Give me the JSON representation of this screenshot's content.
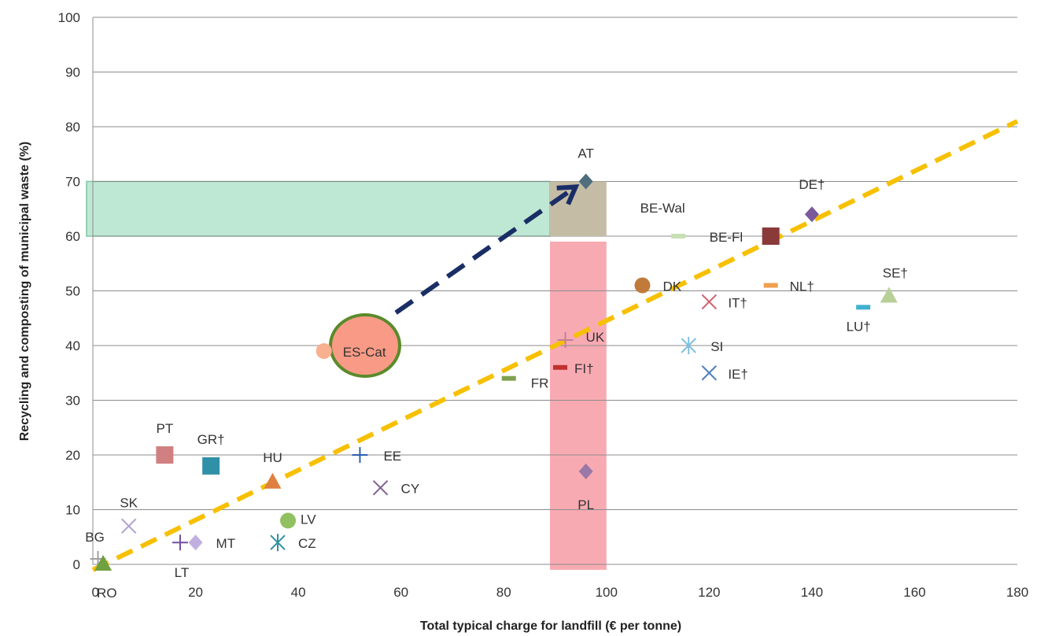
{
  "chart_data": {
    "type": "scatter",
    "xlabel": "Total typical charge for landfill (€ per tonne)",
    "ylabel": "Recycling and composting of municipal waste (%)",
    "xlim": [
      0,
      180
    ],
    "ylim": [
      0,
      100
    ],
    "xticks": [
      0,
      20,
      40,
      60,
      80,
      100,
      120,
      140,
      160,
      180
    ],
    "yticks": [
      0,
      10,
      20,
      30,
      40,
      50,
      60,
      70,
      80,
      90,
      100
    ],
    "grid": "horizontal",
    "points": [
      {
        "label": "AT",
        "x": 96,
        "y": 70,
        "marker": "diamond",
        "color": "#4e6e7e"
      },
      {
        "label": "DE†",
        "x": 140,
        "y": 64,
        "marker": "diamond",
        "color": "#7a5a9a"
      },
      {
        "label": "BE-Wal",
        "x": 114,
        "y": 60,
        "marker": "dash",
        "color": "#c9e0b2"
      },
      {
        "label": "BE-Fl",
        "x": 132,
        "y": 60,
        "marker": "square",
        "color": "#8b3a3a"
      },
      {
        "label": "SE†",
        "x": 155,
        "y": 49,
        "marker": "triangle",
        "color": "#b7d098"
      },
      {
        "label": "DK",
        "x": 107,
        "y": 51,
        "marker": "circle",
        "color": "#c07a3a"
      },
      {
        "label": "NL†",
        "x": 132,
        "y": 51,
        "marker": "dash",
        "color": "#f0a050"
      },
      {
        "label": "IT†",
        "x": 120,
        "y": 48,
        "marker": "x",
        "color": "#d06070"
      },
      {
        "label": "LU†",
        "x": 150,
        "y": 47,
        "marker": "dash",
        "color": "#40b0d0"
      },
      {
        "label": "SI",
        "x": 116,
        "y": 40,
        "marker": "asterisk",
        "color": "#80c0e0"
      },
      {
        "label": "IE†",
        "x": 120,
        "y": 35,
        "marker": "x",
        "color": "#5080c0"
      },
      {
        "label": "UK",
        "x": 92,
        "y": 41,
        "marker": "plus",
        "color": "#c080a0"
      },
      {
        "label": "FI†",
        "x": 91,
        "y": 36,
        "marker": "dash",
        "color": "#c03030"
      },
      {
        "label": "FR",
        "x": 81,
        "y": 34,
        "marker": "dash",
        "color": "#80a050"
      },
      {
        "label": "ES-Cat",
        "x": 45,
        "y": 39,
        "marker": "circle",
        "color": "#f8b090"
      },
      {
        "label": "PT",
        "x": 14,
        "y": 20,
        "marker": "square",
        "color": "#d08080"
      },
      {
        "label": "GR†",
        "x": 23,
        "y": 18,
        "marker": "square",
        "color": "#3090a8"
      },
      {
        "label": "HU",
        "x": 35,
        "y": 15,
        "marker": "triangle",
        "color": "#e08040"
      },
      {
        "label": "EE",
        "x": 52,
        "y": 20,
        "marker": "plus",
        "color": "#3060b0"
      },
      {
        "label": "CY",
        "x": 56,
        "y": 14,
        "marker": "x",
        "color": "#806090"
      },
      {
        "label": "PL",
        "x": 96,
        "y": 17,
        "marker": "diamond",
        "color": "#9a78a8"
      },
      {
        "label": "SK",
        "x": 7,
        "y": 7,
        "marker": "x",
        "color": "#b0a0d0"
      },
      {
        "label": "LV",
        "x": 38,
        "y": 8,
        "marker": "circle",
        "color": "#90c060"
      },
      {
        "label": "LT",
        "x": 17,
        "y": 4,
        "marker": "plus",
        "color": "#7050a0"
      },
      {
        "label": "MT",
        "x": 20,
        "y": 4,
        "marker": "diamond",
        "color": "#c0b0e0"
      },
      {
        "label": "CZ",
        "x": 36,
        "y": 4,
        "marker": "asterisk",
        "color": "#3090a0"
      },
      {
        "label": "BG",
        "x": 1,
        "y": 1,
        "marker": "plus",
        "color": "#a0a0a0"
      },
      {
        "label": "RO",
        "x": 2,
        "y": 0,
        "marker": "triangle",
        "color": "#70a040"
      }
    ],
    "annotations": {
      "green_band": {
        "x": [
          0,
          89
        ],
        "y": [
          60,
          70
        ],
        "color": "#bfe8d4",
        "edge": "#7cc9a5"
      },
      "target_box": {
        "x": [
          89,
          100
        ],
        "y": [
          60,
          70
        ],
        "color": "#c5bca5"
      },
      "red_band": {
        "x": [
          89,
          100
        ],
        "y": [
          -1,
          59
        ],
        "color": "#f8aab2"
      },
      "highlight_circle": {
        "x": 53,
        "y": 40,
        "color": "#f89a85",
        "edge": "#5a8a2a"
      },
      "arrow": {
        "from": [
          59,
          46
        ],
        "to": [
          94,
          69
        ],
        "color": "#1a2e66"
      },
      "trend_line": {
        "from": [
          0,
          -1
        ],
        "to": [
          180,
          81
        ],
        "color": "#f7c000"
      }
    }
  }
}
